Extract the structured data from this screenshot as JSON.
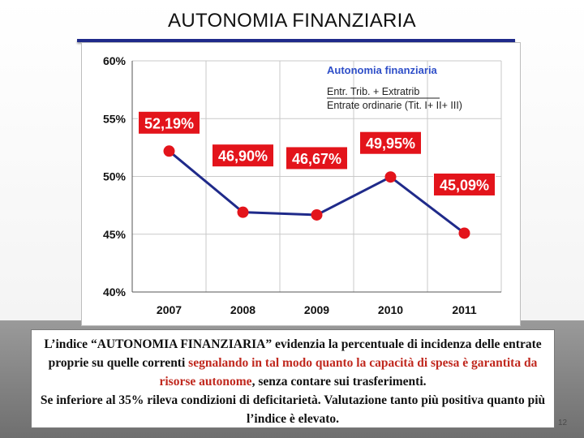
{
  "slide": {
    "title": "AUTONOMIA FINANZIARIA",
    "number": "12"
  },
  "chart_data": {
    "type": "line",
    "categories": [
      "2007",
      "2008",
      "2009",
      "2010",
      "2011"
    ],
    "values": [
      52.19,
      46.9,
      46.67,
      49.95,
      45.09
    ],
    "value_labels": [
      "52,19%",
      "46,90%",
      "46,67%",
      "49,95%",
      "45,09%"
    ],
    "ylim": [
      40,
      60
    ],
    "yticks": [
      60,
      55,
      50,
      45,
      40
    ],
    "ytick_labels": [
      "60%",
      "55%",
      "50%",
      "45%",
      "40%"
    ],
    "legend": {
      "title": "Autonomia finanziaria",
      "numerator": "Entr. Trib. + Extratrib",
      "denominator": "Entrate ordinarie (Tit. I+ II+ III)",
      "placement": "top-right"
    },
    "grid": true,
    "line_color": "#1f2a8a",
    "marker_color": "#e3141b",
    "label_bg_color": "#e3141b",
    "label_text_color": "#ffffff",
    "legend_title_color": "#2e4ec8"
  },
  "caption": {
    "part1": "L’indice “AUTONOMIA FINANZIARIA” evidenzia la percentuale di incidenza delle entrate proprie su quelle correnti ",
    "highlight": "segnalando in tal modo quanto la capacità di spesa è garantita da risorse autonome",
    "part2": ", senza contare sui trasferimenti.",
    "line2": "Se inferiore al 35% rileva condizioni di deficitarietà. Valutazione tanto più positiva quanto più l’indice è elevato."
  }
}
